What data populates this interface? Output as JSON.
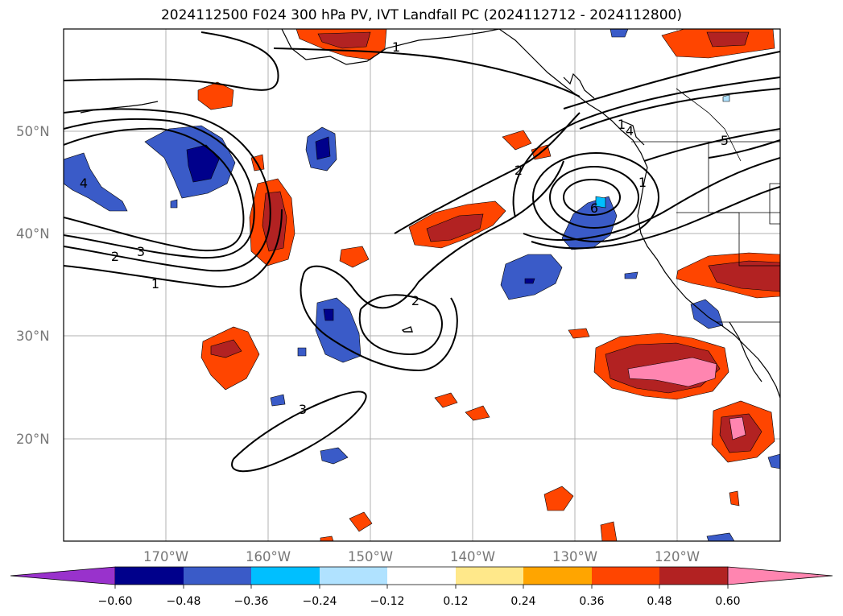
{
  "title": "2024112500 F024 300 hPa PV, IVT Landfall PC (2024112712 - 2024112800)",
  "map": {
    "longitude_labels": [
      "170°W",
      "160°W",
      "150°W",
      "140°W",
      "130°W",
      "120°W"
    ],
    "latitude_labels": [
      "50°N",
      "40°N",
      "30°N",
      "20°N"
    ],
    "contour_labels": [
      "1",
      "2",
      "3",
      "4",
      "6",
      "1",
      "2",
      "3",
      "4",
      "5",
      "1",
      "2",
      "1"
    ]
  },
  "colorbar": {
    "tick_labels": [
      "−0.60",
      "−0.48",
      "−0.36",
      "−0.24",
      "−0.12",
      "0.12",
      "0.24",
      "0.36",
      "0.48",
      "0.60"
    ],
    "colors": [
      "#9932CC",
      "#00008B",
      "#3A5BC8",
      "#00BFFF",
      "#B0E2FF",
      "#FFFFFF",
      "#FFE88A",
      "#FFA500",
      "#FF4500",
      "#B22222",
      "#FF85B0"
    ]
  }
}
